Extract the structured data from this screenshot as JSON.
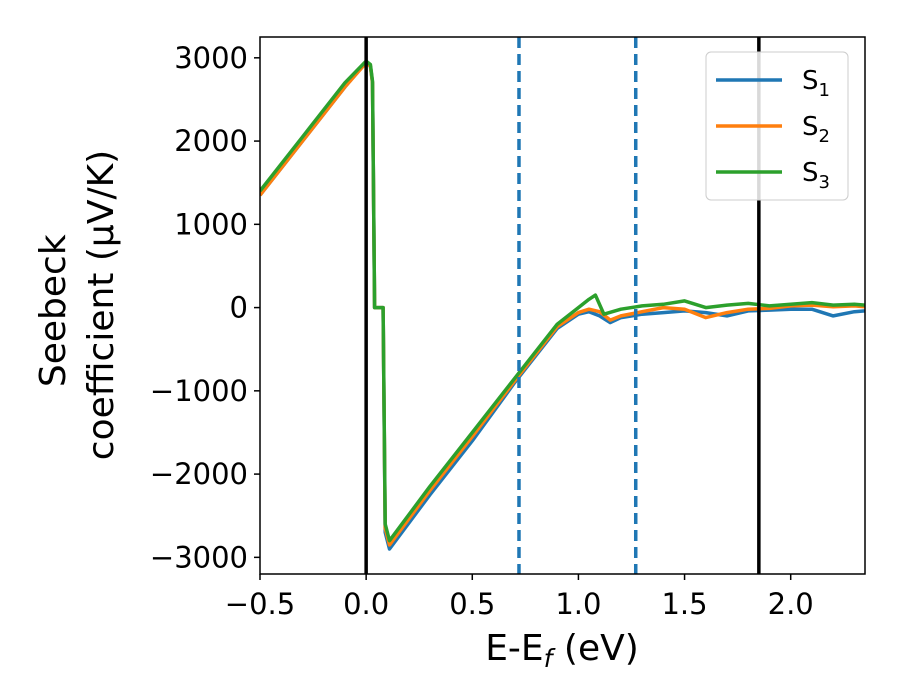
{
  "chart_data": {
    "type": "line",
    "title": "",
    "xlabel": {
      "main": "E-E",
      "sub": "f",
      "tail": " (eV)"
    },
    "ylabel": {
      "line1": "Seebeck",
      "line2": "coefficient  (μV/K)"
    },
    "xlim": [
      -0.5,
      2.35
    ],
    "ylim": [
      -3200,
      3250
    ],
    "xticks": [
      -0.5,
      0.0,
      0.5,
      1.0,
      1.5,
      2.0
    ],
    "xtick_labels": [
      "−0.5",
      "0.0",
      "0.5",
      "1.0",
      "1.5",
      "2.0"
    ],
    "yticks": [
      -3000,
      -2000,
      -1000,
      0,
      1000,
      2000,
      3000
    ],
    "ytick_labels": [
      "−3000",
      "−2000",
      "−1000",
      "0",
      "1000",
      "2000",
      "3000"
    ],
    "grid": false,
    "legend_position": "top-right",
    "vlines": [
      {
        "x": 0.0,
        "style": "solid",
        "color": "#000000"
      },
      {
        "x": 0.72,
        "style": "dashed",
        "color": "#1f77b4"
      },
      {
        "x": 1.27,
        "style": "dashed",
        "color": "#1f77b4"
      },
      {
        "x": 1.85,
        "style": "solid",
        "color": "#000000"
      }
    ],
    "series": [
      {
        "name": "S",
        "sub": "1",
        "color": "#1f77b4",
        "x": [
          -0.5,
          -0.3,
          -0.1,
          0.0,
          0.02,
          0.03,
          0.04,
          0.05,
          0.07,
          0.08,
          0.09,
          0.11,
          0.3,
          0.5,
          0.7,
          0.9,
          1.0,
          1.05,
          1.1,
          1.15,
          1.2,
          1.3,
          1.4,
          1.5,
          1.6,
          1.7,
          1.8,
          1.9,
          2.0,
          2.1,
          2.2,
          2.3,
          2.35
        ],
        "y": [
          1350,
          2000,
          2650,
          2950,
          2900,
          2700,
          0,
          0,
          0,
          0,
          -2700,
          -2900,
          -2250,
          -1600,
          -900,
          -250,
          -80,
          -50,
          -100,
          -180,
          -120,
          -80,
          -60,
          -40,
          -60,
          -100,
          -40,
          -30,
          -20,
          -20,
          -100,
          -50,
          -40
        ]
      },
      {
        "name": "S",
        "sub": "2",
        "color": "#ff7f0e",
        "x": [
          -0.5,
          -0.3,
          -0.1,
          0.0,
          0.02,
          0.03,
          0.04,
          0.05,
          0.07,
          0.08,
          0.09,
          0.11,
          0.3,
          0.5,
          0.7,
          0.9,
          1.0,
          1.05,
          1.1,
          1.15,
          1.2,
          1.3,
          1.4,
          1.5,
          1.6,
          1.7,
          1.8,
          1.9,
          2.0,
          2.1,
          2.2,
          2.3,
          2.35
        ],
        "y": [
          1350,
          2000,
          2650,
          2940,
          2900,
          2700,
          0,
          0,
          0,
          0,
          -2650,
          -2850,
          -2200,
          -1550,
          -880,
          -230,
          -60,
          -20,
          -50,
          -150,
          -100,
          -50,
          0,
          -20,
          -120,
          -60,
          -20,
          -10,
          20,
          30,
          10,
          20,
          10
        ]
      },
      {
        "name": "S",
        "sub": "3",
        "color": "#2ca02c",
        "x": [
          -0.5,
          -0.3,
          -0.1,
          0.0,
          0.02,
          0.03,
          0.04,
          0.05,
          0.07,
          0.08,
          0.09,
          0.11,
          0.3,
          0.5,
          0.7,
          0.9,
          1.0,
          1.05,
          1.08,
          1.12,
          1.2,
          1.3,
          1.4,
          1.5,
          1.6,
          1.7,
          1.8,
          1.9,
          2.0,
          2.1,
          2.2,
          2.3,
          2.35
        ],
        "y": [
          1400,
          2050,
          2700,
          2960,
          2920,
          2720,
          0,
          0,
          0,
          0,
          -2600,
          -2800,
          -2150,
          -1500,
          -850,
          -200,
          0,
          100,
          150,
          -80,
          -20,
          20,
          40,
          80,
          0,
          30,
          50,
          20,
          40,
          60,
          30,
          40,
          30
        ]
      }
    ]
  }
}
